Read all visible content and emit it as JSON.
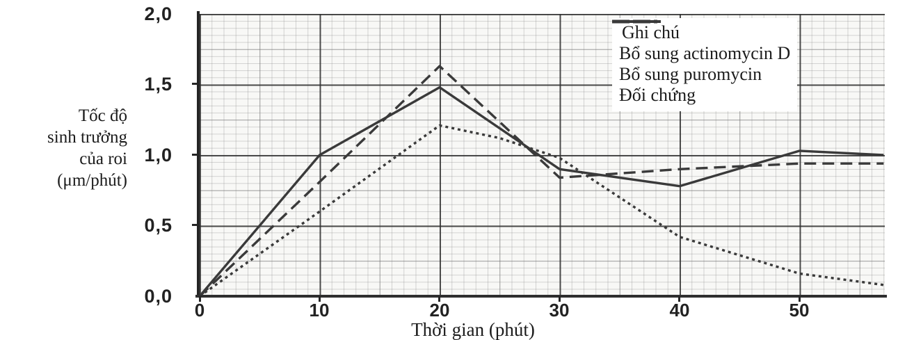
{
  "chart_data": {
    "type": "line",
    "title": "",
    "xlabel": "Thời gian (phút)",
    "ylabel": "Tốc độ sinh trưởng của roi (μm/phút)",
    "ylabel_lines": [
      "Tốc độ",
      "sinh trưởng",
      "của roi",
      "(μm/phút)"
    ],
    "xlim": [
      0,
      57.1
    ],
    "ylim": [
      0,
      2.0
    ],
    "x_ticks": [
      0,
      10,
      20,
      30,
      40,
      50
    ],
    "x_tick_labels": [
      "0",
      "10",
      "20",
      "30",
      "40",
      "50"
    ],
    "y_ticks": [
      0.0,
      0.5,
      1.0,
      1.5,
      2.0
    ],
    "y_tick_labels": [
      "0,0",
      "0,5",
      "1,0",
      "1,5",
      "2,0"
    ],
    "grid": "graph-paper (fine + medium + bold rules)",
    "legend_position": "top-right inside plot",
    "legend_title": "Ghi chú",
    "line_color": "#3a3a3a",
    "series": [
      {
        "name": "Bổ sung actinomycin D",
        "style": "dashed",
        "points": [
          [
            0,
            0
          ],
          [
            10,
            0.81
          ],
          [
            20,
            1.63
          ],
          [
            30,
            0.84
          ],
          [
            40,
            0.9
          ],
          [
            50,
            0.94
          ],
          [
            57,
            0.94
          ]
        ]
      },
      {
        "name": "Bổ sung puromycin",
        "style": "dotted",
        "points": [
          [
            0,
            0
          ],
          [
            10,
            0.6
          ],
          [
            20,
            1.21
          ],
          [
            25,
            1.12
          ],
          [
            30,
            0.98
          ],
          [
            40,
            0.42
          ],
          [
            50,
            0.16
          ],
          [
            57,
            0.08
          ]
        ]
      },
      {
        "name": "Đối chứng",
        "style": "solid",
        "points": [
          [
            0,
            0
          ],
          [
            10,
            1.0
          ],
          [
            20,
            1.48
          ],
          [
            30,
            0.9
          ],
          [
            40,
            0.78
          ],
          [
            50,
            1.03
          ],
          [
            57,
            1.0
          ]
        ]
      }
    ]
  }
}
